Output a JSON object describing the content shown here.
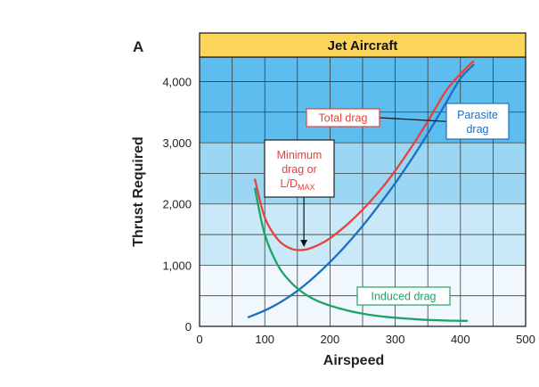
{
  "chart_data": {
    "type": "line",
    "panel_label": "A",
    "title": "Jet Aircraft",
    "xlabel": "Airspeed",
    "ylabel": "Thrust Required",
    "xlim": [
      0,
      500
    ],
    "ylim": [
      0,
      4400
    ],
    "grid": true,
    "x_ticks": [
      "0",
      "100",
      "200",
      "300",
      "400",
      "500"
    ],
    "y_ticks": [
      "0",
      "1,000",
      "2,000",
      "3,000",
      "4,000"
    ],
    "x_tick_values": [
      0,
      100,
      200,
      300,
      400,
      500
    ],
    "y_tick_values": [
      0,
      1000,
      2000,
      3000,
      4000
    ],
    "background_bands": [
      {
        "from": 0,
        "to": 1000,
        "color": "#f0f8fd"
      },
      {
        "from": 1000,
        "to": 2000,
        "color": "#cae9f8"
      },
      {
        "from": 2000,
        "to": 3000,
        "color": "#9bd6f3"
      },
      {
        "from": 3000,
        "to": 4400,
        "color": "#5cbdee"
      }
    ],
    "series": [
      {
        "key": "total",
        "color": "#e8423c",
        "x": [
          85,
          100,
          120,
          140,
          160,
          180,
          200,
          230,
          260,
          290,
          320,
          350,
          380,
          410,
          420
        ],
        "values": [
          2400,
          1780,
          1420,
          1270,
          1250,
          1320,
          1440,
          1700,
          2020,
          2400,
          2850,
          3350,
          3880,
          4230,
          4330
        ]
      },
      {
        "key": "parasite",
        "color": "#1f6fc0",
        "x": [
          75,
          100,
          125,
          150,
          175,
          200,
          225,
          250,
          275,
          300,
          325,
          350,
          375,
          400,
          420
        ],
        "values": [
          150,
          260,
          400,
          580,
          800,
          1050,
          1330,
          1640,
          1980,
          2340,
          2730,
          3150,
          3600,
          4050,
          4270
        ]
      },
      {
        "key": "induced",
        "color": "#1ea365",
        "x": [
          85,
          100,
          120,
          140,
          160,
          180,
          200,
          230,
          260,
          290,
          320,
          350,
          380,
          410
        ],
        "values": [
          2250,
          1500,
          1000,
          720,
          540,
          420,
          340,
          250,
          190,
          150,
          125,
          105,
          95,
          90
        ]
      }
    ],
    "annotations": [
      {
        "key": "total",
        "lines": [
          "Total drag"
        ],
        "text_color": "#e8423c",
        "box_border": "#e8423c",
        "box_fill": "#ffffff",
        "arrow_to": [
          395,
          3340
        ]
      },
      {
        "key": "parasite",
        "lines": [
          "Parasite",
          "drag"
        ],
        "text_color": "#1f6fc0",
        "box_border": "#1f6fc0",
        "box_fill": "#ffffff"
      },
      {
        "key": "minimum",
        "lines": [
          "Minimum",
          "drag or"
        ],
        "final_line": {
          "main": "L/D",
          "sub": "MAX"
        },
        "text_color": "#e8423c",
        "box_border": "#222222",
        "box_fill": "#ffffff",
        "arrow_to": [
          160,
          1255
        ]
      },
      {
        "key": "induced",
        "lines": [
          "Induced drag"
        ],
        "text_color": "#1ea365",
        "box_border": "#1ea365",
        "box_fill": "#ffffff"
      }
    ],
    "colors": {
      "frame": "#222222",
      "grid": "#3a3a3a",
      "title_bar": "#fbd45a"
    }
  }
}
